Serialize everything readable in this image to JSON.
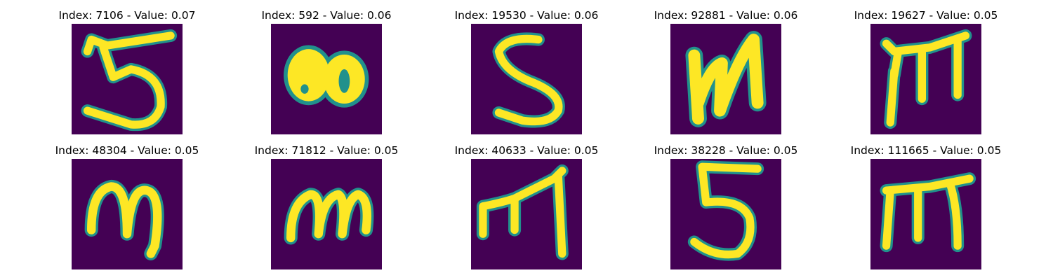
{
  "colors": {
    "background": "#440154",
    "edge": "#21918c",
    "stroke_mid": "#5ec962",
    "stroke": "#fde725"
  },
  "panels": [
    {
      "title": "Index: 7106 - Value: 0.07",
      "glyph": "digit-5-wide"
    },
    {
      "title": "Index: 592 - Value: 0.06",
      "glyph": "blob-80"
    },
    {
      "title": "Index: 19530 - Value: 0.06",
      "glyph": "digit-5"
    },
    {
      "title": "Index: 92881 - Value: 0.06",
      "glyph": "letter-n"
    },
    {
      "title": "Index: 19627 - Value: 0.05",
      "glyph": "letter-m-tall"
    },
    {
      "title": "Index: 48304 - Value: 0.05",
      "glyph": "letter-m-round"
    },
    {
      "title": "Index: 71812 - Value: 0.05",
      "glyph": "letter-m-flat"
    },
    {
      "title": "Index: 40633 - Value: 0.05",
      "glyph": "letter-m-angled"
    },
    {
      "title": "Index: 38228 - Value: 0.05",
      "glyph": "digit-5"
    },
    {
      "title": "Index: 111665 - Value: 0.05",
      "glyph": "letter-m-tall"
    }
  ]
}
